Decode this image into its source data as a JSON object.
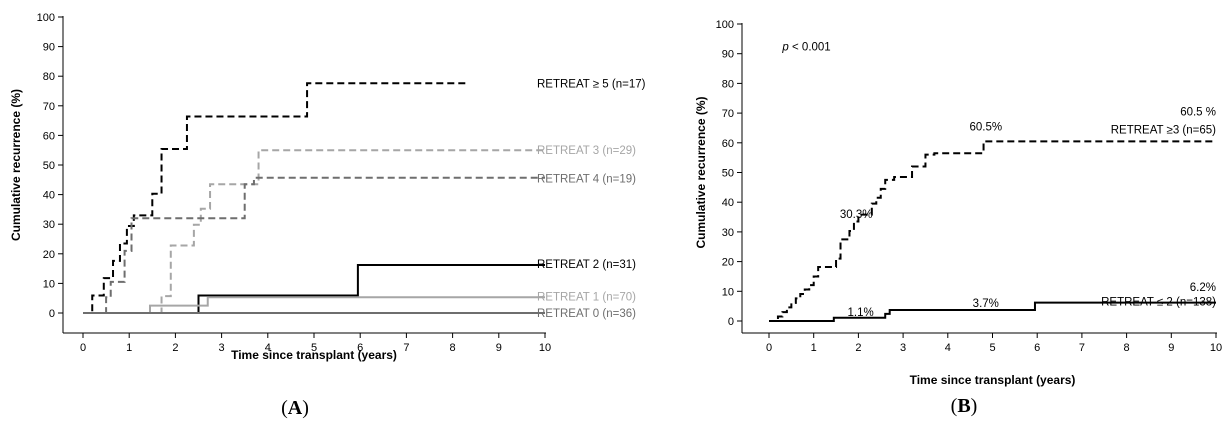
{
  "chart_data": [
    {
      "type": "line",
      "panel_label": "(A)",
      "xlabel": "Time since transplant (years)",
      "ylabel": "Cumulative recurrence (%)",
      "xlim": [
        0,
        10
      ],
      "ylim": [
        0,
        100
      ],
      "x_ticks": [
        "0",
        "1",
        "2",
        "3",
        "4",
        "5",
        "6",
        "7",
        "8",
        "9",
        "10"
      ],
      "y_ticks": [
        "0",
        "10",
        "20",
        "30",
        "40",
        "50",
        "60",
        "70",
        "80",
        "90",
        "100"
      ],
      "grid": false,
      "annotations": [],
      "series": [
        {
          "name": "RETREAT ≥ 5 (n=17)",
          "color": "#000000",
          "dash": "dashed",
          "label_y": 77.5,
          "x": [
            0,
            0.2,
            0.45,
            0.65,
            0.8,
            0.95,
            1.1,
            1.5,
            1.7,
            2.25,
            3.55,
            4.85,
            8.35
          ],
          "y": [
            0,
            5.9,
            11.8,
            17.6,
            23.5,
            29.4,
            33.0,
            40.3,
            55.4,
            66.4,
            66.4,
            77.6,
            77.6
          ]
        },
        {
          "name": "RETREAT 3 (n=29)",
          "color": "#a6a6a6",
          "dash": "dashed",
          "label_y": 55,
          "x": [
            0,
            0.35,
            1.7,
            1.9,
            2.4,
            2.55,
            2.75,
            3.0,
            3.8,
            10
          ],
          "y": [
            0,
            0,
            5.7,
            22.8,
            29.8,
            35.2,
            43.5,
            43.5,
            55.0,
            55.0
          ]
        },
        {
          "name": "RETREAT 4 (n=19)",
          "color": "#6e6e6e",
          "dash": "dashed",
          "label_y": 45.5,
          "x": [
            0,
            0.5,
            0.6,
            0.9,
            1.05,
            3.5,
            3.7,
            10
          ],
          "y": [
            0,
            5.3,
            10.5,
            21.0,
            32.0,
            43.5,
            45.7,
            45.7
          ]
        },
        {
          "name": "RETREAT 2 (n=31)",
          "color": "#000000",
          "dash": "solid",
          "label_y": 16.5,
          "x": [
            0,
            2.5,
            5.95,
            10
          ],
          "y": [
            0,
            5.9,
            16.2,
            16.2
          ]
        },
        {
          "name": "RETREAT 1 (n=70)",
          "color": "#a6a6a6",
          "dash": "solid",
          "label_y": 5.5,
          "x": [
            0,
            1.45,
            2.7,
            10
          ],
          "y": [
            0,
            2.5,
            5.3,
            5.3
          ]
        },
        {
          "name": "RETREAT 0 (n=36)",
          "color": "#6e6e6e",
          "dash": "solid",
          "label_y": 0,
          "x": [
            0,
            10
          ],
          "y": [
            0,
            0
          ]
        }
      ]
    },
    {
      "type": "line",
      "panel_label": "(B)",
      "xlabel": "Time since transplant (years)",
      "ylabel": "Cumulative recurrence (%)",
      "xlim": [
        0,
        10
      ],
      "ylim": [
        0,
        100
      ],
      "x_ticks": [
        "0",
        "1",
        "2",
        "3",
        "4",
        "5",
        "6",
        "7",
        "8",
        "9",
        "10"
      ],
      "y_ticks": [
        "0",
        "10",
        "20",
        "30",
        "40",
        "50",
        "60",
        "70",
        "80",
        "90",
        "100"
      ],
      "grid": false,
      "annotations": [
        {
          "text": "p < 0.001",
          "x": 0.3,
          "y": 92.5,
          "anchor": "start"
        },
        {
          "text": "30.3%",
          "x": 1.95,
          "y": 36,
          "anchor": "middle"
        },
        {
          "text": "60.5%",
          "x": 4.85,
          "y": 65.5,
          "anchor": "middle"
        },
        {
          "text": "1.1%",
          "x": 2.05,
          "y": 3,
          "anchor": "middle"
        },
        {
          "text": "3.7%",
          "x": 4.85,
          "y": 6,
          "anchor": "middle"
        },
        {
          "text": "60.5 %",
          "x": 10,
          "y": 70.5,
          "anchor": "end"
        },
        {
          "text": "6.2%",
          "x": 10,
          "y": 11.5,
          "anchor": "end"
        }
      ],
      "series": [
        {
          "name": "RETREAT ≥3 (n=65)",
          "color": "#000000",
          "dash": "dashed",
          "label_x": 10,
          "label_y": 64.5,
          "x": [
            0,
            0.2,
            0.3,
            0.4,
            0.5,
            0.6,
            0.7,
            0.8,
            0.9,
            1.0,
            1.1,
            1.5,
            1.6,
            1.8,
            1.9,
            2.0,
            2.3,
            2.4,
            2.5,
            2.6,
            2.8,
            3.2,
            3.5,
            3.7,
            4.8,
            10
          ],
          "y": [
            0,
            1.5,
            3.0,
            4.6,
            6.1,
            7.6,
            9.1,
            10.6,
            12.1,
            15.0,
            18.2,
            21.0,
            27.5,
            30.3,
            33.5,
            35.8,
            39.5,
            41.5,
            44.5,
            47.5,
            48.5,
            52.0,
            56.0,
            56.5,
            60.5,
            60.5
          ]
        },
        {
          "name": "RETREAT ≤ 2 (n=138)",
          "color": "#000000",
          "dash": "solid",
          "label_x": 10,
          "label_y": 6.5,
          "x": [
            0,
            1.45,
            2.6,
            2.7,
            5.95,
            10
          ],
          "y": [
            0,
            1.1,
            2.4,
            3.7,
            6.2,
            6.2
          ]
        }
      ]
    }
  ]
}
